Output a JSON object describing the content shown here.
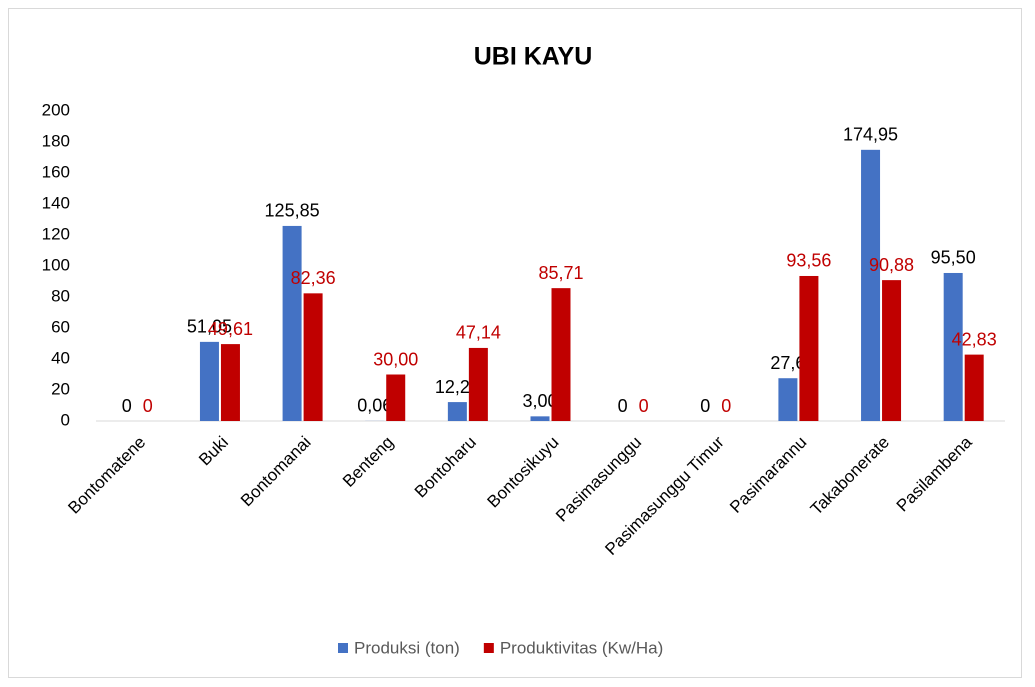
{
  "chart_data": {
    "type": "bar",
    "title": "UBI KAYU",
    "categories": [
      "Bontomatene",
      "Buki",
      "Bontomanai",
      "Benteng",
      "Bontoharu",
      "Bontosikuyu",
      "Pasimasunggu",
      "Pasimasunggu Timur",
      "Pasimarannu",
      "Takabonerate",
      "Pasilambena"
    ],
    "series": [
      {
        "name": "Produksi (ton)",
        "color": "#4472c4",
        "values": [
          0,
          51.05,
          125.85,
          0.06,
          12.2,
          3.0,
          0,
          0,
          27.6,
          174.95,
          95.5
        ],
        "value_labels": [
          "0",
          "51,05",
          "125,85",
          "0,06",
          "12,20",
          "3,00",
          "0",
          "0",
          "27,6",
          "174,95",
          "95,50"
        ],
        "label_color": "#000000"
      },
      {
        "name": "Produktivitas (Kw/Ha)",
        "color": "#c00000",
        "values": [
          0,
          49.61,
          82.36,
          30.0,
          47.14,
          85.71,
          0,
          0,
          93.56,
          90.88,
          42.83
        ],
        "value_labels": [
          "0",
          "49,61",
          "82,36",
          "30,00",
          "47,14",
          "85,71",
          "0",
          "0",
          "93,56",
          "90,88",
          "42,83"
        ],
        "label_color": "#c00000"
      }
    ],
    "ylim": [
      0,
      200
    ],
    "yticks": [
      0,
      20,
      40,
      60,
      80,
      100,
      120,
      140,
      160,
      180,
      200
    ],
    "grid": false,
    "legend": "bottom"
  }
}
